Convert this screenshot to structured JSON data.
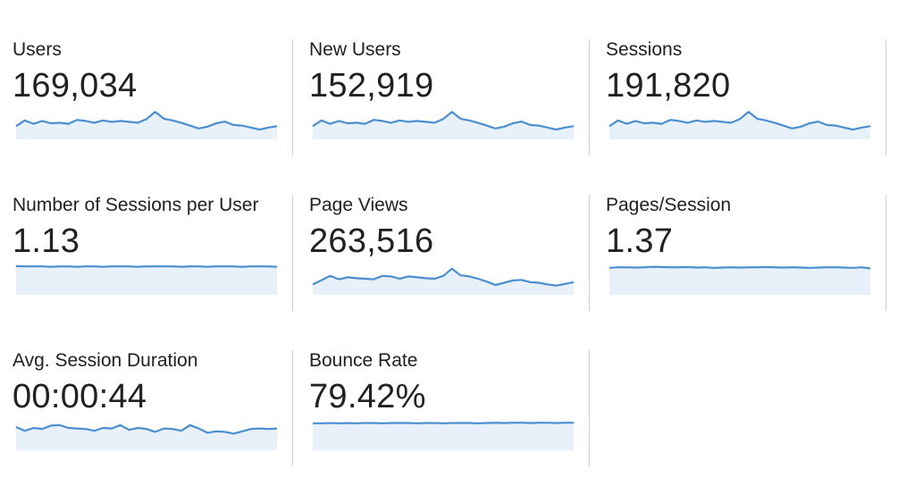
{
  "metrics": [
    {
      "label": "Users",
      "value": "169,034",
      "trend": [
        0.4,
        0.6,
        0.48,
        0.58,
        0.5,
        0.52,
        0.48,
        0.62,
        0.58,
        0.52,
        0.6,
        0.55,
        0.58,
        0.55,
        0.52,
        0.65,
        0.9,
        0.66,
        0.6,
        0.52,
        0.42,
        0.32,
        0.38,
        0.5,
        0.56,
        0.44,
        0.42,
        0.35,
        0.28,
        0.35,
        0.4
      ]
    },
    {
      "label": "New Users",
      "value": "152,919",
      "trend": [
        0.4,
        0.6,
        0.48,
        0.58,
        0.5,
        0.52,
        0.48,
        0.62,
        0.58,
        0.52,
        0.6,
        0.55,
        0.58,
        0.55,
        0.52,
        0.65,
        0.9,
        0.66,
        0.6,
        0.52,
        0.42,
        0.32,
        0.38,
        0.5,
        0.56,
        0.44,
        0.42,
        0.35,
        0.28,
        0.35,
        0.4
      ]
    },
    {
      "label": "Sessions",
      "value": "191,820",
      "trend": [
        0.4,
        0.6,
        0.48,
        0.58,
        0.5,
        0.52,
        0.48,
        0.62,
        0.58,
        0.52,
        0.6,
        0.55,
        0.58,
        0.55,
        0.52,
        0.65,
        0.9,
        0.66,
        0.6,
        0.52,
        0.42,
        0.32,
        0.38,
        0.5,
        0.56,
        0.44,
        0.42,
        0.35,
        0.28,
        0.35,
        0.4
      ]
    },
    {
      "label": "Number of Sessions per User",
      "value": "1.13",
      "trend": [
        0.94,
        0.93,
        0.93,
        0.93,
        0.92,
        0.93,
        0.93,
        0.92,
        0.93,
        0.93,
        0.92,
        0.93,
        0.93,
        0.93,
        0.92,
        0.93,
        0.93,
        0.93,
        0.93,
        0.92,
        0.93,
        0.93,
        0.92,
        0.93,
        0.93,
        0.93,
        0.92,
        0.93,
        0.93,
        0.93,
        0.92
      ]
    },
    {
      "label": "Page Views",
      "value": "263,516",
      "trend": [
        0.3,
        0.45,
        0.6,
        0.48,
        0.55,
        0.52,
        0.5,
        0.48,
        0.6,
        0.58,
        0.5,
        0.58,
        0.55,
        0.52,
        0.5,
        0.6,
        0.85,
        0.62,
        0.58,
        0.5,
        0.4,
        0.28,
        0.36,
        0.44,
        0.46,
        0.38,
        0.36,
        0.3,
        0.26,
        0.32,
        0.38
      ]
    },
    {
      "label": "Pages/Session",
      "value": "1.37",
      "trend": [
        0.88,
        0.9,
        0.9,
        0.89,
        0.9,
        0.92,
        0.91,
        0.9,
        0.9,
        0.91,
        0.89,
        0.9,
        0.88,
        0.89,
        0.9,
        0.89,
        0.9,
        0.9,
        0.91,
        0.9,
        0.89,
        0.9,
        0.89,
        0.88,
        0.89,
        0.9,
        0.9,
        0.89,
        0.88,
        0.9,
        0.86
      ]
    },
    {
      "label": "Avg. Session Duration",
      "value": "00:00:44",
      "trend": [
        0.75,
        0.62,
        0.72,
        0.68,
        0.8,
        0.82,
        0.72,
        0.7,
        0.68,
        0.62,
        0.72,
        0.7,
        0.82,
        0.65,
        0.72,
        0.68,
        0.58,
        0.7,
        0.68,
        0.62,
        0.82,
        0.7,
        0.55,
        0.6,
        0.58,
        0.52,
        0.6,
        0.68,
        0.7,
        0.68,
        0.7
      ]
    },
    {
      "label": "Bounce Rate",
      "value": "79.42%",
      "trend": [
        0.88,
        0.88,
        0.89,
        0.88,
        0.89,
        0.88,
        0.89,
        0.89,
        0.88,
        0.89,
        0.89,
        0.89,
        0.88,
        0.89,
        0.89,
        0.88,
        0.89,
        0.89,
        0.89,
        0.88,
        0.89,
        0.9,
        0.89,
        0.9,
        0.9,
        0.89,
        0.9,
        0.9,
        0.89,
        0.9,
        0.9
      ]
    }
  ],
  "colors": {
    "line": "#4b8fd1",
    "fill": "#e8f0fa",
    "divider": "#cfcfcf",
    "text": "#212121"
  }
}
